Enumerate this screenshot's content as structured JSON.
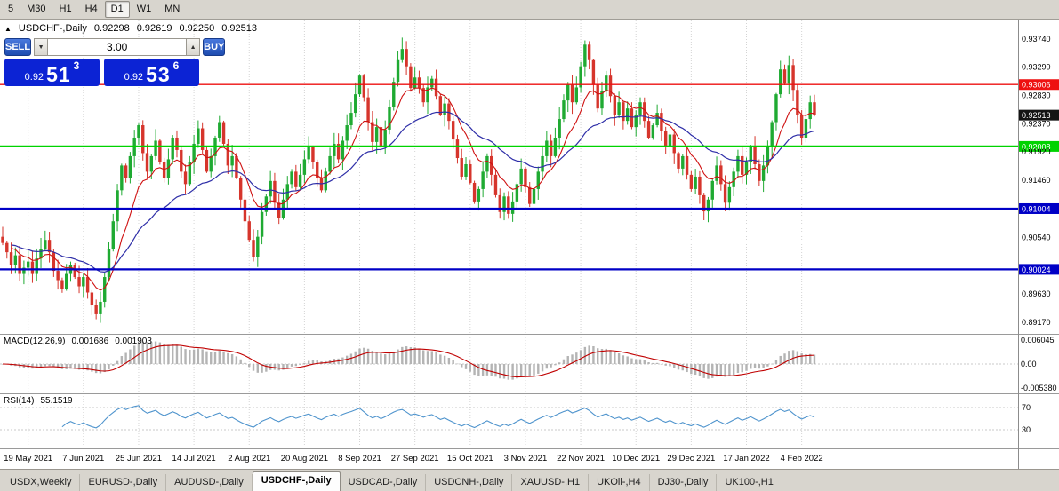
{
  "colors": {
    "candle_up": "#1faa32",
    "candle_down": "#d6352c",
    "ma_fast": "#cf1111",
    "ma_slow": "#2f2fa8",
    "macd_hist": "#b4b4b4",
    "macd_signal": "#c00000",
    "rsi_line": "#4f94cd",
    "grid": "#d4d4d4",
    "tag_current_bg": "#141414",
    "quote_bg": "#0c23d4",
    "button_blue": "#1e4cb0",
    "line_red": "#ee1111",
    "line_green": "#00d300",
    "line_blue": "#0000c6"
  },
  "timeframes": {
    "items": [
      {
        "label": "5",
        "active": false
      },
      {
        "label": "M30",
        "active": false
      },
      {
        "label": "H1",
        "active": false
      },
      {
        "label": "H4",
        "active": false
      },
      {
        "label": "D1",
        "active": true
      },
      {
        "label": "W1",
        "active": false
      },
      {
        "label": "MN",
        "active": false
      }
    ]
  },
  "chart_header": {
    "symbol": "USDCHF-,Daily",
    "open": "0.92298",
    "high": "0.92619",
    "low": "0.92250",
    "close": "0.92513"
  },
  "trade_panel": {
    "sell_label": "SELL",
    "buy_label": "BUY",
    "volume": "3.00",
    "sell_quote": {
      "base": "0.92",
      "big": "51",
      "pip": "3"
    },
    "buy_quote": {
      "base": "0.92",
      "big": "53",
      "pip": "6"
    }
  },
  "macd_panel": {
    "label": "MACD(12,26,9)",
    "value_main": "0.001686",
    "value_signal": "0.001903",
    "axis_top": "0.006045",
    "axis_zero": "0.00",
    "axis_bottom": "-0.005380"
  },
  "rsi_panel": {
    "label": "RSI(14)",
    "value": "55.1519",
    "level_top": "70",
    "level_bottom": "30"
  },
  "bottom_tabs": {
    "items": [
      {
        "label": "USDX,Weekly",
        "active": false
      },
      {
        "label": "EURUSD-,Daily",
        "active": false
      },
      {
        "label": "AUDUSD-,Daily",
        "active": false
      },
      {
        "label": "USDCHF-,Daily",
        "active": true
      },
      {
        "label": "USDCAD-,Daily",
        "active": false
      },
      {
        "label": "USDCNH-,Daily",
        "active": false
      },
      {
        "label": "XAUUSD-,H1",
        "active": false
      },
      {
        "label": "UKOil-,H4",
        "active": false
      },
      {
        "label": "DJ30-,Daily",
        "active": false
      },
      {
        "label": "UK100-,H1",
        "active": false
      }
    ]
  },
  "chart_data": {
    "type": "candlestick",
    "symbol": "USDCHF",
    "timeframe": "Daily",
    "ohlc_current": {
      "open": 0.92298,
      "high": 0.92619,
      "low": 0.9225,
      "close": 0.92513
    },
    "y_axis": {
      "max": 0.9374,
      "min": 0.8917,
      "ticks": [
        "0.93740",
        "0.93290",
        "0.92830",
        "0.92370",
        "0.91920",
        "0.91460",
        "0.90540",
        "0.89630",
        "0.89170"
      ]
    },
    "x_labels": [
      "19 May 2021",
      "7 Jun 2021",
      "25 Jun 2021",
      "14 Jul 2021",
      "2 Aug 2021",
      "20 Aug 2021",
      "8 Sep 2021",
      "27 Sep 2021",
      "15 Oct 2021",
      "3 Nov 2021",
      "22 Nov 2021",
      "10 Dec 2021",
      "29 Dec 2021",
      "17 Jan 2022",
      "4 Feb 2022"
    ],
    "x_label_indices": [
      6,
      19,
      32,
      45,
      58,
      71,
      84,
      97,
      110,
      123,
      136,
      149,
      162,
      175,
      188
    ],
    "closes": [
      0.9045,
      0.903,
      0.901,
      0.9025,
      0.8995,
      0.9005,
      0.9015,
      0.8995,
      0.902,
      0.9035,
      0.905,
      0.903,
      0.9,
      0.8985,
      0.897,
      0.8995,
      0.901,
      0.899,
      0.8975,
      0.899,
      0.8965,
      0.8945,
      0.893,
      0.895,
      0.899,
      0.9035,
      0.908,
      0.913,
      0.917,
      0.915,
      0.9185,
      0.9215,
      0.9235,
      0.919,
      0.916,
      0.9185,
      0.921,
      0.9175,
      0.915,
      0.918,
      0.9215,
      0.9195,
      0.916,
      0.914,
      0.9175,
      0.9205,
      0.923,
      0.9195,
      0.916,
      0.9185,
      0.9215,
      0.924,
      0.9205,
      0.917,
      0.9185,
      0.915,
      0.9115,
      0.908,
      0.905,
      0.9022,
      0.9055,
      0.9095,
      0.912,
      0.9145,
      0.911,
      0.9085,
      0.9115,
      0.914,
      0.916,
      0.9135,
      0.9155,
      0.918,
      0.92,
      0.9175,
      0.915,
      0.913,
      0.916,
      0.9185,
      0.9205,
      0.918,
      0.921,
      0.9235,
      0.9255,
      0.9285,
      0.9315,
      0.928,
      0.924,
      0.9208,
      0.9232,
      0.92,
      0.9228,
      0.9265,
      0.9305,
      0.934,
      0.9358,
      0.933,
      0.9295,
      0.9312,
      0.9295,
      0.9272,
      0.9296,
      0.931,
      0.9282,
      0.9252,
      0.927,
      0.9242,
      0.9212,
      0.9182,
      0.9152,
      0.9172,
      0.9142,
      0.9112,
      0.9132,
      0.916,
      0.9185,
      0.9155,
      0.9122,
      0.9095,
      0.912,
      0.9092,
      0.9112,
      0.914,
      0.9165,
      0.9135,
      0.9108,
      0.9132,
      0.916,
      0.9185,
      0.921,
      0.9185,
      0.9215,
      0.9245,
      0.9275,
      0.93,
      0.9272,
      0.9296,
      0.933,
      0.9365,
      0.934,
      0.93,
      0.9262,
      0.929,
      0.9315,
      0.9282,
      0.9252,
      0.9272,
      0.9242,
      0.9262,
      0.9232,
      0.9252,
      0.9272,
      0.9242,
      0.9215,
      0.9235,
      0.9255,
      0.9225,
      0.92,
      0.922,
      0.919,
      0.9165,
      0.9185,
      0.9155,
      0.9132,
      0.9152,
      0.9122,
      0.9096,
      0.9115,
      0.9145,
      0.917,
      0.914,
      0.911,
      0.9135,
      0.916,
      0.9185,
      0.9155,
      0.9175,
      0.92,
      0.9172,
      0.9145,
      0.917,
      0.92,
      0.924,
      0.9285,
      0.9325,
      0.9302,
      0.9332,
      0.9292,
      0.9252,
      0.9215,
      0.9245,
      0.9272,
      0.92513
    ],
    "hlines": [
      {
        "price": 0.93006,
        "label": "0.93006",
        "color": "#ee1111",
        "width": 1.4
      },
      {
        "price": 0.92008,
        "label": "0.92008",
        "color": "#00d300",
        "width": 2.2
      },
      {
        "price": 0.91004,
        "label": "0.91004",
        "color": "#0000c6",
        "width": 2.2
      },
      {
        "price": 0.90024,
        "label": "0.90024",
        "color": "#0000c6",
        "width": 2.2
      }
    ],
    "current_price": {
      "price": 0.92513,
      "label": "0.92513"
    },
    "indicators": {
      "ma_fast_period": 10,
      "ma_slow_period": 30,
      "macd_params": [
        12,
        26,
        9
      ],
      "macd_values": [
        0.001686,
        0.001903
      ],
      "rsi_period": 14,
      "rsi_value": 55.1519,
      "rsi_levels": [
        70,
        30
      ]
    }
  }
}
